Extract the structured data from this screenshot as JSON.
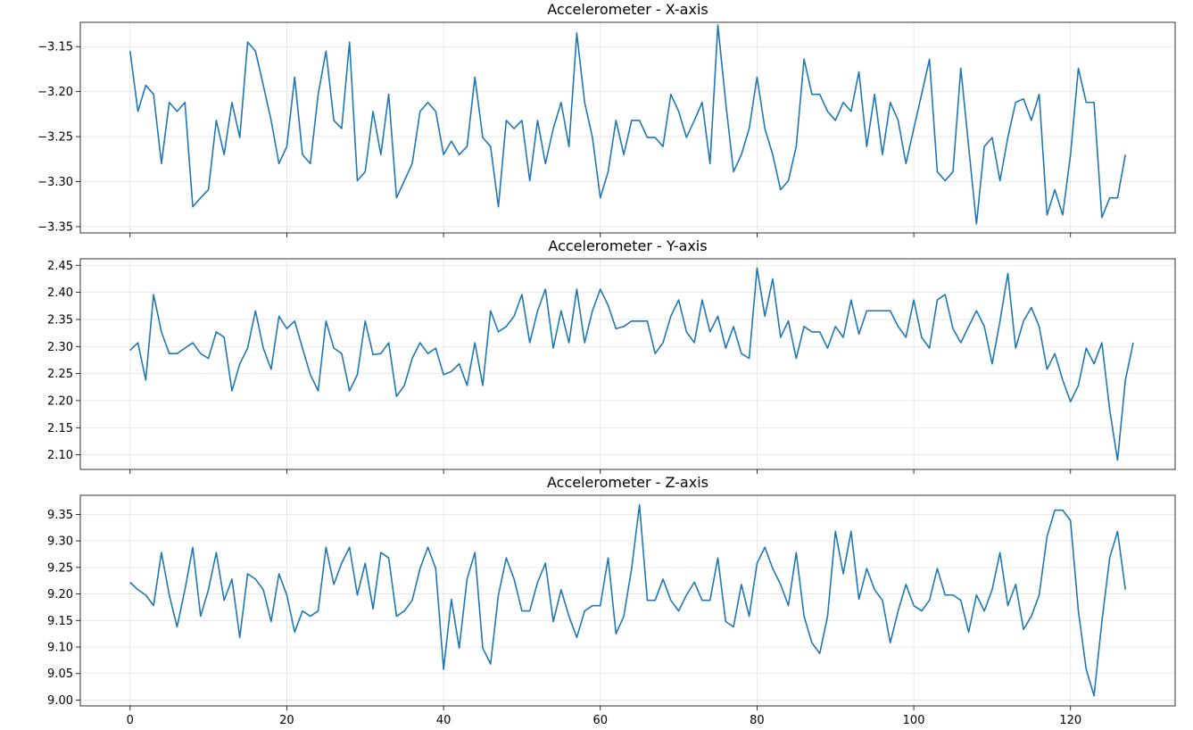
{
  "chart_data": [
    {
      "type": "line",
      "title": "Accelerometer - X-axis",
      "xlabel": "",
      "ylabel": "",
      "xlim": [
        -6.35,
        133.35
      ],
      "ylim": [
        -3.357,
        -3.123
      ],
      "xticks": [
        0,
        20,
        40,
        60,
        80,
        100,
        120
      ],
      "xtick_labels_shown": false,
      "yticks": [
        -3.35,
        -3.3,
        -3.25,
        -3.2,
        -3.15
      ],
      "ytick_labels": [
        "−3.35",
        "−3.30",
        "−3.25",
        "−3.20",
        "−3.15"
      ],
      "grid": true,
      "color": "#1f77b4",
      "series": [
        {
          "x_start": 0,
          "x_step": 1,
          "values": [
            -3.155,
            -3.222,
            -3.193,
            -3.203,
            -3.28,
            -3.212,
            -3.222,
            -3.212,
            -3.328,
            -3.318,
            -3.309,
            -3.232,
            -3.27,
            -3.212,
            -3.251,
            -3.145,
            -3.155,
            -3.193,
            -3.232,
            -3.28,
            -3.261,
            -3.184,
            -3.27,
            -3.28,
            -3.203,
            -3.155,
            -3.232,
            -3.241,
            -3.145,
            -3.299,
            -3.289,
            -3.222,
            -3.27,
            -3.203,
            -3.318,
            -3.299,
            -3.28,
            -3.222,
            -3.212,
            -3.222,
            -3.27,
            -3.255,
            -3.27,
            -3.261,
            -3.184,
            -3.251,
            -3.261,
            -3.328,
            -3.232,
            -3.241,
            -3.232,
            -3.299,
            -3.232,
            -3.28,
            -3.241,
            -3.212,
            -3.261,
            -3.135,
            -3.212,
            -3.251,
            -3.318,
            -3.289,
            -3.232,
            -3.27,
            -3.232,
            -3.232,
            -3.251,
            -3.251,
            -3.261,
            -3.203,
            -3.222,
            -3.251,
            -3.232,
            -3.212,
            -3.28,
            -3.126,
            -3.212,
            -3.289,
            -3.27,
            -3.241,
            -3.184,
            -3.241,
            -3.27,
            -3.309,
            -3.299,
            -3.261,
            -3.164,
            -3.203,
            -3.203,
            -3.222,
            -3.232,
            -3.212,
            -3.222,
            -3.178,
            -3.261,
            -3.203,
            -3.27,
            -3.212,
            -3.232,
            -3.28,
            -3.241,
            -3.203,
            -3.164,
            -3.289,
            -3.299,
            -3.289,
            -3.174,
            -3.261,
            -3.347,
            -3.261,
            -3.251,
            -3.299,
            -3.251,
            -3.212,
            -3.208,
            -3.232,
            -3.203,
            -3.337,
            -3.309,
            -3.337,
            -3.27,
            -3.174,
            -3.212,
            -3.212,
            -3.34,
            -3.318,
            -3.318,
            -3.27
          ]
        }
      ]
    },
    {
      "type": "line",
      "title": "Accelerometer - Y-axis",
      "xlabel": "",
      "ylabel": "",
      "xlim": [
        -6.35,
        133.35
      ],
      "ylim": [
        2.073,
        2.462
      ],
      "xticks": [
        0,
        20,
        40,
        60,
        80,
        100,
        120
      ],
      "xtick_labels_shown": false,
      "yticks": [
        2.1,
        2.15,
        2.2,
        2.25,
        2.3,
        2.35,
        2.4,
        2.45
      ],
      "ytick_labels": [
        "2.10",
        "2.15",
        "2.20",
        "2.25",
        "2.30",
        "2.35",
        "2.40",
        "2.45"
      ],
      "grid": true,
      "color": "#1f77b4",
      "series": [
        {
          "x_start": 0,
          "x_step": 1,
          "values": [
            2.293,
            2.307,
            2.238,
            2.396,
            2.327,
            2.287,
            2.287,
            2.297,
            2.307,
            2.287,
            2.278,
            2.327,
            2.317,
            2.218,
            2.268,
            2.297,
            2.366,
            2.297,
            2.258,
            2.356,
            2.333,
            2.347,
            2.297,
            2.248,
            2.218,
            2.347,
            2.297,
            2.287,
            2.218,
            2.248,
            2.347,
            2.285,
            2.287,
            2.307,
            2.208,
            2.228,
            2.278,
            2.307,
            2.287,
            2.297,
            2.248,
            2.254,
            2.268,
            2.228,
            2.307,
            2.228,
            2.366,
            2.327,
            2.337,
            2.356,
            2.396,
            2.307,
            2.366,
            2.406,
            2.297,
            2.366,
            2.307,
            2.406,
            2.307,
            2.366,
            2.406,
            2.376,
            2.333,
            2.337,
            2.347,
            2.347,
            2.347,
            2.287,
            2.307,
            2.356,
            2.386,
            2.327,
            2.307,
            2.386,
            2.327,
            2.356,
            2.297,
            2.337,
            2.287,
            2.278,
            2.445,
            2.356,
            2.425,
            2.317,
            2.347,
            2.278,
            2.337,
            2.327,
            2.327,
            2.297,
            2.337,
            2.317,
            2.386,
            2.323,
            2.366,
            2.366,
            2.366,
            2.366,
            2.337,
            2.317,
            2.386,
            2.317,
            2.297,
            2.386,
            2.396,
            2.333,
            2.307,
            2.337,
            2.366,
            2.337,
            2.268,
            2.347,
            2.435,
            2.297,
            2.347,
            2.372,
            2.337,
            2.258,
            2.287,
            2.238,
            2.198,
            2.228,
            2.297,
            2.268,
            2.307,
            2.183,
            2.09,
            2.238,
            2.307
          ]
        }
      ]
    },
    {
      "type": "line",
      "title": "Accelerometer - Z-axis",
      "xlabel": "",
      "ylabel": "",
      "xlim": [
        -6.35,
        133.35
      ],
      "ylim": [
        8.989,
        9.386
      ],
      "xticks": [
        0,
        20,
        40,
        60,
        80,
        100,
        120
      ],
      "xtick_labels": [
        "0",
        "20",
        "40",
        "60",
        "80",
        "100",
        "120"
      ],
      "yticks": [
        9.0,
        9.05,
        9.1,
        9.15,
        9.2,
        9.25,
        9.3,
        9.35
      ],
      "ytick_labels": [
        "9.00",
        "9.05",
        "9.10",
        "9.15",
        "9.20",
        "9.25",
        "9.30",
        "9.35"
      ],
      "grid": true,
      "color": "#1f77b4",
      "series": [
        {
          "x_start": 0,
          "x_step": 1,
          "values": [
            9.222,
            9.208,
            9.198,
            9.178,
            9.278,
            9.198,
            9.138,
            9.208,
            9.288,
            9.158,
            9.208,
            9.278,
            9.188,
            9.228,
            9.118,
            9.238,
            9.228,
            9.208,
            9.148,
            9.238,
            9.198,
            9.128,
            9.168,
            9.158,
            9.168,
            9.288,
            9.218,
            9.258,
            9.288,
            9.198,
            9.258,
            9.172,
            9.278,
            9.268,
            9.158,
            9.168,
            9.188,
            9.248,
            9.288,
            9.248,
            9.058,
            9.19,
            9.098,
            9.228,
            9.278,
            9.098,
            9.068,
            9.198,
            9.268,
            9.228,
            9.168,
            9.168,
            9.222,
            9.258,
            9.148,
            9.208,
            9.158,
            9.118,
            9.168,
            9.178,
            9.178,
            9.268,
            9.125,
            9.158,
            9.248,
            9.368,
            9.188,
            9.188,
            9.228,
            9.188,
            9.168,
            9.198,
            9.222,
            9.188,
            9.188,
            9.268,
            9.148,
            9.138,
            9.218,
            9.158,
            9.258,
            9.288,
            9.248,
            9.218,
            9.178,
            9.278,
            9.158,
            9.108,
            9.088,
            9.158,
            9.318,
            9.238,
            9.318,
            9.19,
            9.248,
            9.208,
            9.188,
            9.108,
            9.168,
            9.218,
            9.178,
            9.168,
            9.188,
            9.248,
            9.198,
            9.198,
            9.188,
            9.128,
            9.198,
            9.168,
            9.208,
            9.278,
            9.178,
            9.218,
            9.133,
            9.158,
            9.198,
            9.308,
            9.358,
            9.358,
            9.338,
            9.168,
            9.058,
            9.008,
            9.148,
            9.268,
            9.318,
            9.208
          ]
        }
      ]
    }
  ]
}
